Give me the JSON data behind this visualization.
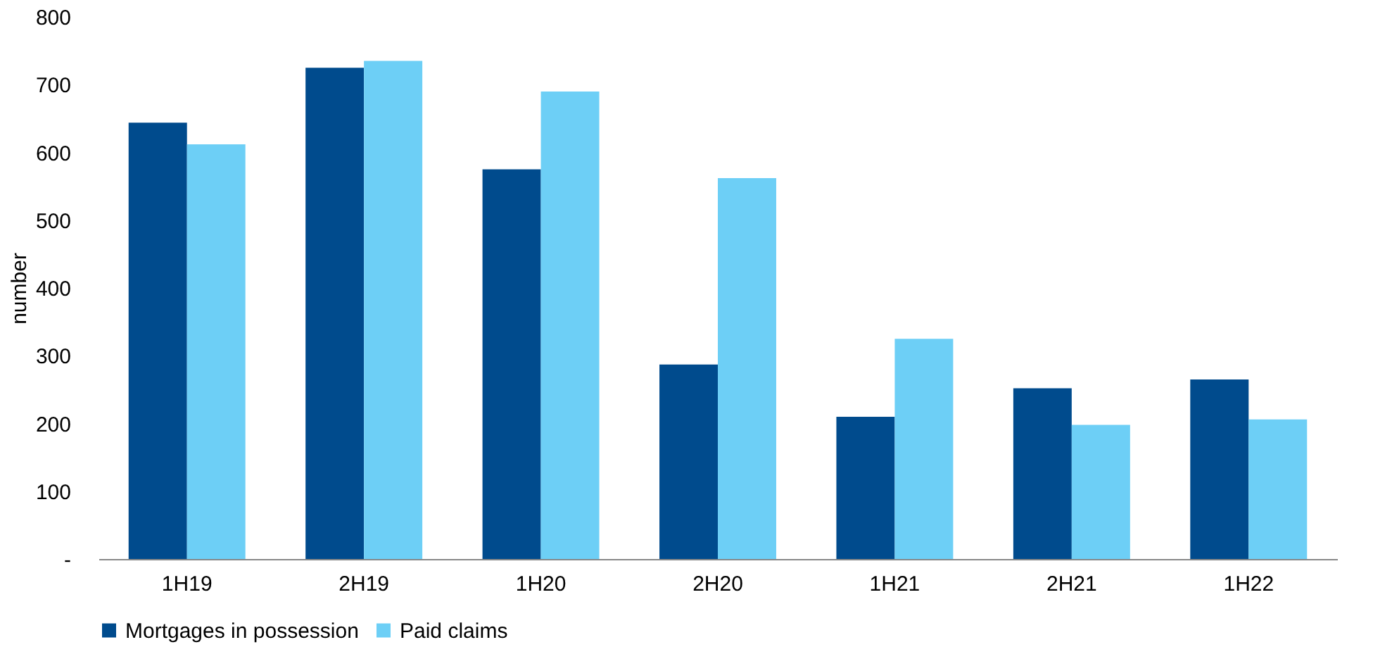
{
  "chart_data": {
    "type": "bar",
    "ylabel": "number",
    "categories": [
      "1H19",
      "2H19",
      "1H20",
      "2H20",
      "1H21",
      "2H21",
      "1H22"
    ],
    "series": [
      {
        "name": "Mortgages in possession",
        "color": "#004b8d",
        "values": [
          644,
          725,
          575,
          287,
          210,
          252,
          265
        ]
      },
      {
        "name": "Paid claims",
        "color": "#6dcff6",
        "values": [
          612,
          735,
          690,
          562,
          325,
          198,
          206
        ]
      }
    ],
    "ylim": [
      0,
      800
    ],
    "yticks": [
      {
        "value": 0,
        "label": "-"
      },
      100,
      200,
      300,
      400,
      500,
      600,
      700,
      800
    ],
    "grid": false,
    "legend": "bottom"
  }
}
